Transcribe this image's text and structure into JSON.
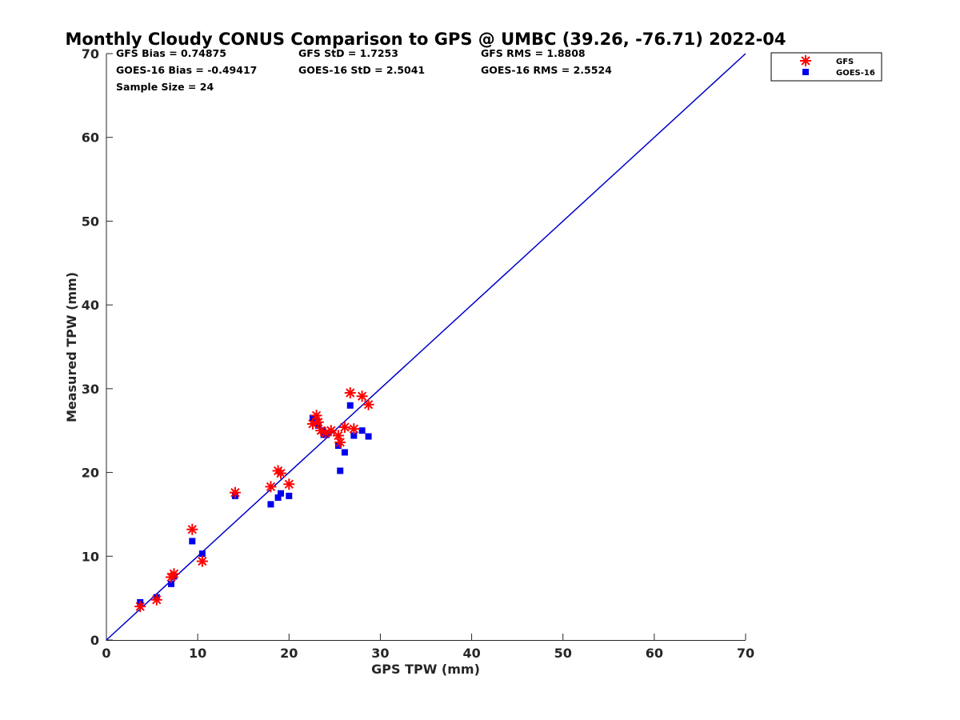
{
  "chart_data": {
    "type": "scatter",
    "title": "Monthly Cloudy CONUS Comparison to GPS @ UMBC (39.26, -76.71) 2022-04",
    "xlabel": "GPS TPW (mm)",
    "ylabel": "Measured TPW (mm)",
    "xlim": [
      0,
      70
    ],
    "ylim": [
      0,
      70
    ],
    "xticks": [
      "0",
      "10",
      "20",
      "30",
      "40",
      "50",
      "60",
      "70"
    ],
    "yticks": [
      "0",
      "10",
      "20",
      "30",
      "40",
      "50",
      "60",
      "70"
    ],
    "grid": false,
    "legend_position": "outside-top-right",
    "stats": {
      "gfs_bias": "GFS Bias = 0.74875",
      "goes_bias": "GOES-16 Bias = -0.49417",
      "sample_size": "Sample Size = 24",
      "gfs_std": "GFS StD = 1.7253",
      "goes_std": "GOES-16 StD = 2.5041",
      "gfs_rms": "GFS RMS = 1.8808",
      "goes_rms": "GOES-16 RMS = 2.5524"
    },
    "reference_line": {
      "name": "1:1 line",
      "x": [
        0,
        70
      ],
      "y": [
        0,
        70
      ],
      "color": "#0000cc"
    },
    "series": [
      {
        "name": "GFS",
        "marker": "asterisk",
        "color": "#ff0000",
        "x": [
          3.7,
          5.5,
          7.1,
          7.4,
          9.4,
          10.5,
          14.1,
          18.0,
          18.8,
          19.1,
          20.0,
          22.6,
          23.0,
          23.5,
          24.0,
          24.6,
          25.4,
          25.6,
          26.1,
          26.7,
          27.1,
          28.0,
          28.7,
          23.2
        ],
        "y": [
          4.0,
          4.8,
          7.5,
          7.9,
          13.2,
          9.4,
          17.6,
          18.3,
          20.2,
          19.9,
          18.6,
          25.8,
          26.8,
          25.0,
          24.7,
          25.0,
          24.4,
          23.6,
          25.4,
          29.5,
          25.2,
          29.1,
          28.1,
          26.0
        ]
      },
      {
        "name": "GOES-16",
        "marker": "square",
        "color": "#0000ee",
        "x": [
          3.7,
          5.5,
          7.1,
          7.4,
          9.4,
          10.5,
          14.1,
          18.0,
          18.8,
          19.1,
          20.0,
          22.6,
          23.0,
          23.2,
          23.8,
          24.1,
          25.4,
          25.6,
          26.1,
          26.7,
          27.1,
          28.0,
          28.7,
          23.7
        ],
        "y": [
          4.5,
          5.1,
          6.7,
          7.6,
          11.8,
          10.3,
          17.2,
          16.2,
          17.0,
          17.5,
          17.2,
          26.5,
          26.3,
          25.6,
          24.5,
          24.5,
          23.2,
          20.2,
          22.4,
          28.0,
          24.4,
          25.0,
          24.3,
          25.0
        ]
      }
    ]
  }
}
